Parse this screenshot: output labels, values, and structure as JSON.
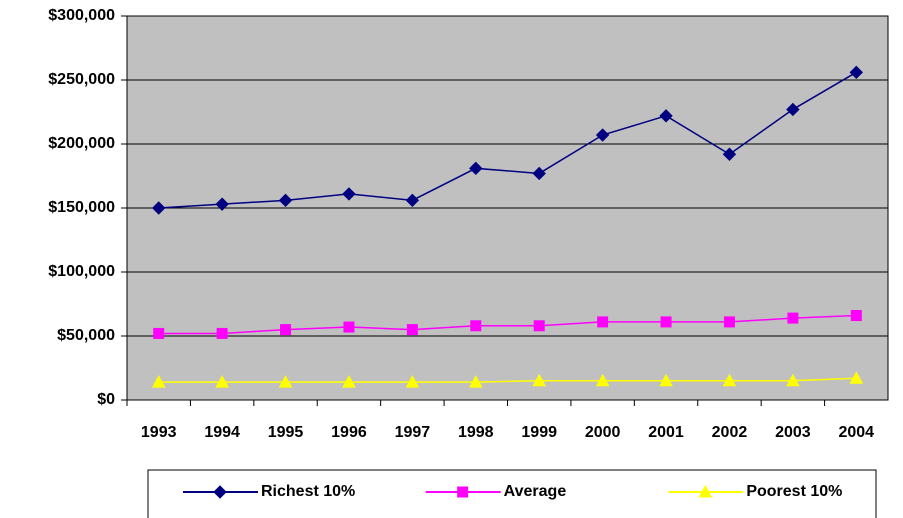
{
  "chart_data": {
    "type": "line",
    "categories": [
      "1993",
      "1994",
      "1995",
      "1996",
      "1997",
      "1998",
      "1999",
      "2000",
      "2001",
      "2002",
      "2003",
      "2004"
    ],
    "series": [
      {
        "name": "Richest 10%",
        "color": "#000080",
        "marker": "diamond",
        "values": [
          150000,
          153000,
          156000,
          161000,
          156000,
          181000,
          177000,
          207000,
          222000,
          192000,
          227000,
          256000
        ]
      },
      {
        "name": "Average",
        "color": "#ff00ff",
        "marker": "square",
        "values": [
          52000,
          52000,
          55000,
          57000,
          55000,
          58000,
          58000,
          61000,
          61000,
          61000,
          64000,
          66000
        ]
      },
      {
        "name": "Poorest 10%",
        "color": "#ffff00",
        "marker": "triangle",
        "values": [
          14000,
          14000,
          14000,
          14000,
          14000,
          14000,
          15000,
          15000,
          15000,
          15000,
          15000,
          17000
        ]
      }
    ],
    "ylim": [
      0,
      300000
    ],
    "yticks": [
      {
        "value": 0,
        "label": "$0"
      },
      {
        "value": 50000,
        "label": "$50,000"
      },
      {
        "value": 100000,
        "label": "$100,000"
      },
      {
        "value": 150000,
        "label": "$150,000"
      },
      {
        "value": 200000,
        "label": "$200,000"
      },
      {
        "value": 250000,
        "label": "$250,000"
      },
      {
        "value": 300000,
        "label": "$300,000"
      }
    ],
    "grid": true,
    "plot_background": "#c0c0c0",
    "legend": "bottom"
  }
}
